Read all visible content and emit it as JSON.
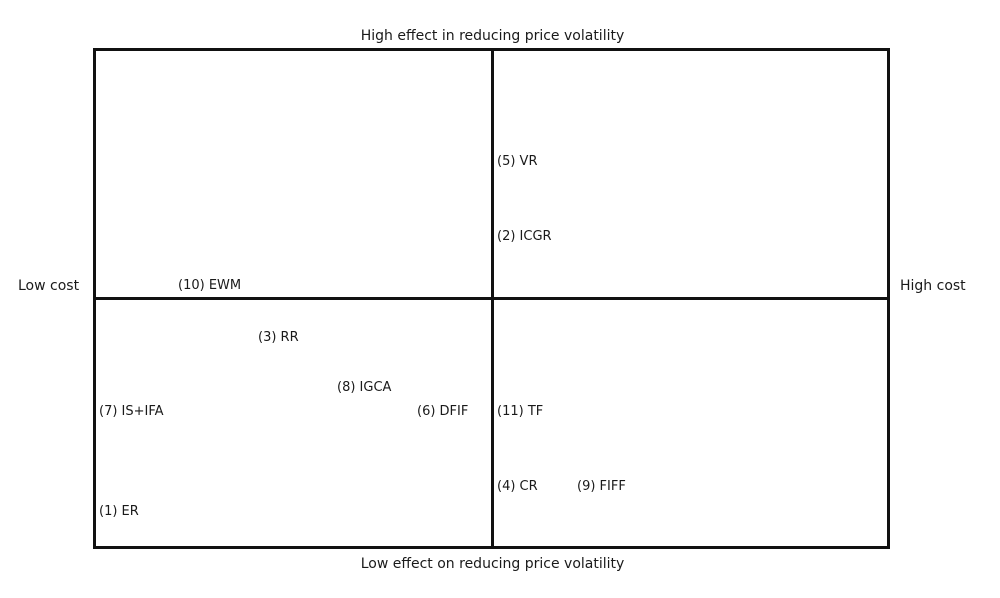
{
  "axes": {
    "top": "High effect in reducing price volatility",
    "bottom": "Low effect on reducing price volatility",
    "left": "Low cost",
    "right": "High cost"
  },
  "items": [
    {
      "id": "vr",
      "label": "(5) VR"
    },
    {
      "id": "icgr",
      "label": "(2) ICGR"
    },
    {
      "id": "ewm",
      "label": "(10) EWM"
    },
    {
      "id": "rr",
      "label": "(3) RR"
    },
    {
      "id": "igca",
      "label": "(8) IGCA"
    },
    {
      "id": "isifa",
      "label": "(7) IS+IFA"
    },
    {
      "id": "dfif",
      "label": "(6) DFIF"
    },
    {
      "id": "tf",
      "label": "(11) TF"
    },
    {
      "id": "cr",
      "label": "(4) CR"
    },
    {
      "id": "fiff",
      "label": "(9) FIFF"
    },
    {
      "id": "er",
      "label": "(1) ER"
    }
  ]
}
